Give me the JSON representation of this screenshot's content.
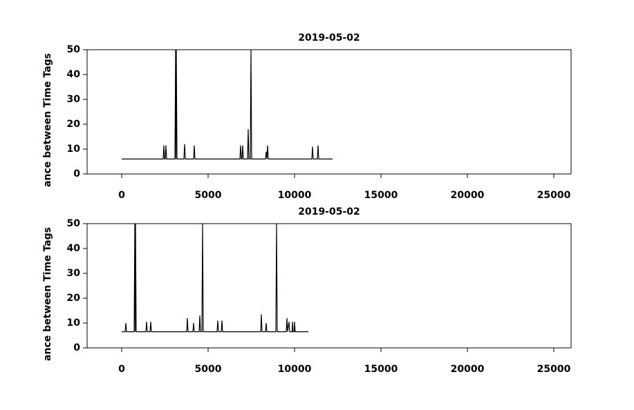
{
  "chart_data": [
    {
      "type": "line",
      "title": "2019-05-02",
      "y_label": "ance between Time Tags",
      "xlim": [
        -2000,
        26000
      ],
      "ylim": [
        0,
        50
      ],
      "xticks": [
        0,
        5000,
        10000,
        15000,
        20000,
        25000
      ],
      "yticks": [
        0,
        10,
        20,
        30,
        40,
        50
      ],
      "series": [
        {
          "color": "#000000",
          "x": [
            0,
            2400,
            2440,
            2480,
            2520,
            2560,
            2600,
            3080,
            3120,
            3140,
            3160,
            3200,
            3600,
            3640,
            3680,
            4160,
            4200,
            4240,
            6840,
            6880,
            6920,
            6960,
            7000,
            7040,
            7280,
            7320,
            7360,
            7440,
            7480,
            7520,
            8320,
            8360,
            8400,
            8440,
            8480,
            11000,
            11040,
            11080,
            11320,
            11360,
            11400,
            12200
          ],
          "values": [
            6,
            6,
            11.5,
            6,
            6,
            11.5,
            6,
            6,
            50,
            6,
            50,
            6,
            6,
            12,
            6,
            6,
            11.5,
            6,
            6,
            11.5,
            6,
            6,
            11.5,
            6,
            6,
            18,
            6,
            6,
            50,
            6,
            6,
            9,
            6,
            11.5,
            6,
            6,
            11,
            6,
            6,
            11.5,
            6,
            6
          ]
        }
      ]
    },
    {
      "type": "line",
      "title": "2019-05-02",
      "y_label": "ance between Time Tags",
      "xlim": [
        -2000,
        26000
      ],
      "ylim": [
        0,
        50
      ],
      "xticks": [
        0,
        5000,
        10000,
        15000,
        20000,
        25000
      ],
      "yticks": [
        0,
        10,
        20,
        30,
        40,
        50
      ],
      "series": [
        {
          "color": "#000000",
          "x": [
            0,
            200,
            240,
            280,
            720,
            760,
            780,
            800,
            840,
            1400,
            1440,
            1480,
            1640,
            1680,
            1720,
            3760,
            3800,
            3840,
            4120,
            4160,
            4200,
            4480,
            4520,
            4560,
            4640,
            4680,
            4720,
            5520,
            5560,
            5600,
            5760,
            5800,
            5840,
            8040,
            8080,
            8120,
            8320,
            8360,
            8400,
            8920,
            8960,
            9000,
            9520,
            9560,
            9600,
            9680,
            9720,
            9860,
            9880,
            9920,
            9980,
            10000,
            10040,
            10800
          ],
          "values": [
            6.5,
            6.5,
            10,
            6.5,
            6.5,
            50,
            6.5,
            50,
            6.5,
            6.5,
            10.5,
            6.5,
            6.5,
            10.5,
            6.5,
            6.5,
            12,
            6.5,
            6.5,
            10,
            6.5,
            6.5,
            13,
            6.5,
            6.5,
            50,
            6.5,
            6.5,
            11,
            6.5,
            6.5,
            11,
            6.5,
            6.5,
            13.5,
            6.5,
            6.5,
            10,
            6.5,
            6.5,
            50,
            6.5,
            6.5,
            12,
            6.5,
            10.5,
            6.5,
            6.5,
            10.5,
            6.5,
            6.5,
            10.5,
            6.5,
            6.5
          ]
        }
      ]
    }
  ]
}
